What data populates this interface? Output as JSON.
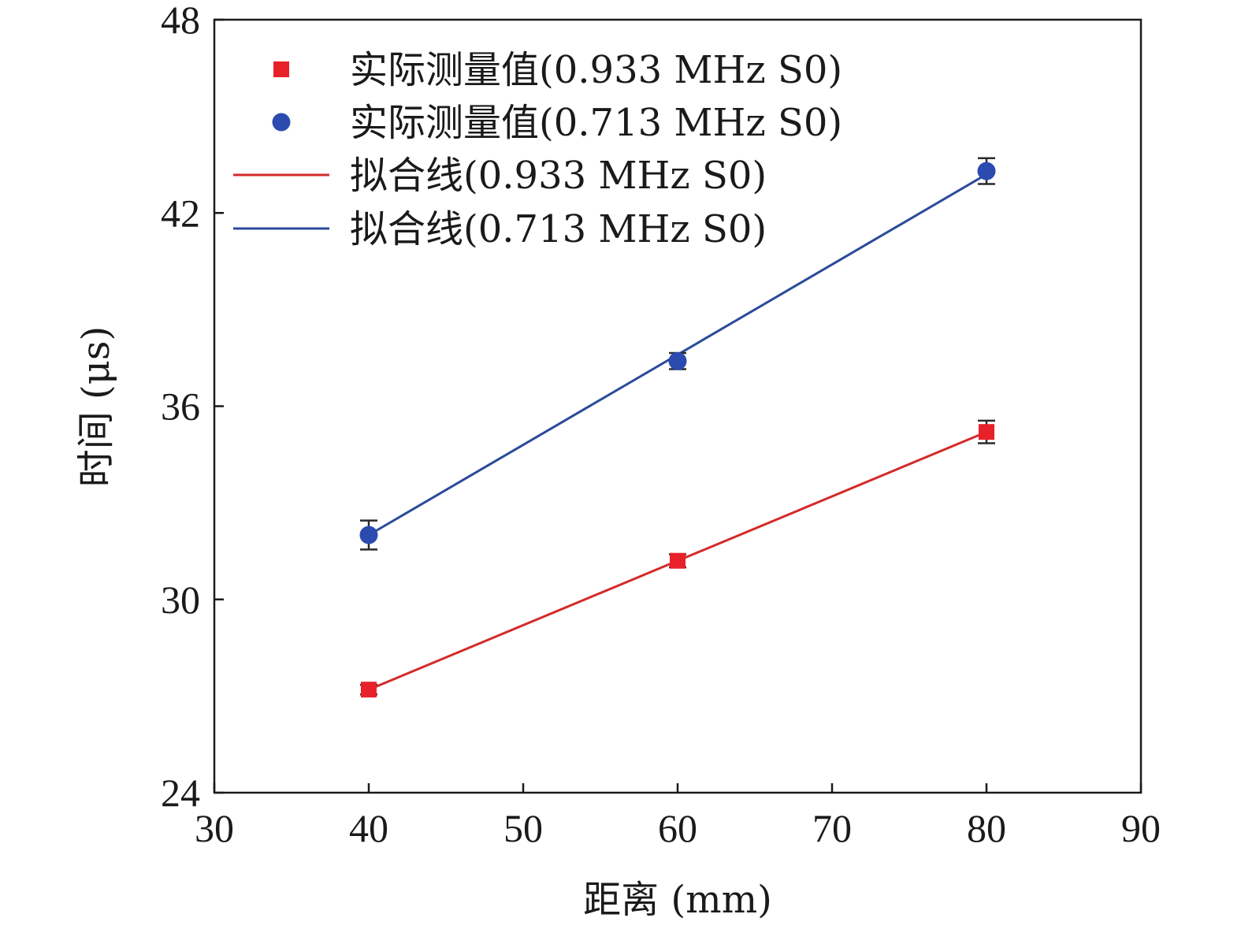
{
  "chart_data": {
    "type": "scatter",
    "xlabel": "距离 (mm)",
    "ylabel": "时间 (μs)",
    "xlim": [
      30,
      90
    ],
    "ylim": [
      24,
      48
    ],
    "xticks": [
      30,
      40,
      50,
      60,
      70,
      80,
      90
    ],
    "yticks": [
      24,
      30,
      36,
      42,
      48
    ],
    "grid": false,
    "legend_position": "top-left",
    "series": [
      {
        "name": "实际测量值(0.933 MHz S0)",
        "kind": "points",
        "marker": "square",
        "color": "#e8202a",
        "x": [
          40,
          60,
          80
        ],
        "y": [
          27.2,
          31.2,
          35.2
        ],
        "error": [
          0.15,
          0.2,
          0.35
        ]
      },
      {
        "name": "实际测量值(0.713 MHz S0)",
        "kind": "points",
        "marker": "circle",
        "color": "#2b4bb0",
        "x": [
          40,
          60,
          80
        ],
        "y": [
          32.0,
          37.4,
          43.3
        ],
        "error": [
          0.45,
          0.25,
          0.4
        ]
      },
      {
        "name": "拟合线(0.933 MHz S0)",
        "kind": "line",
        "color": "#d42a2a",
        "x": [
          40,
          80
        ],
        "y": [
          27.2,
          35.2
        ]
      },
      {
        "name": "拟合线(0.713 MHz S0)",
        "kind": "line",
        "color": "#2a4a9a",
        "x": [
          40,
          80
        ],
        "y": [
          32.0,
          43.2
        ]
      }
    ]
  }
}
